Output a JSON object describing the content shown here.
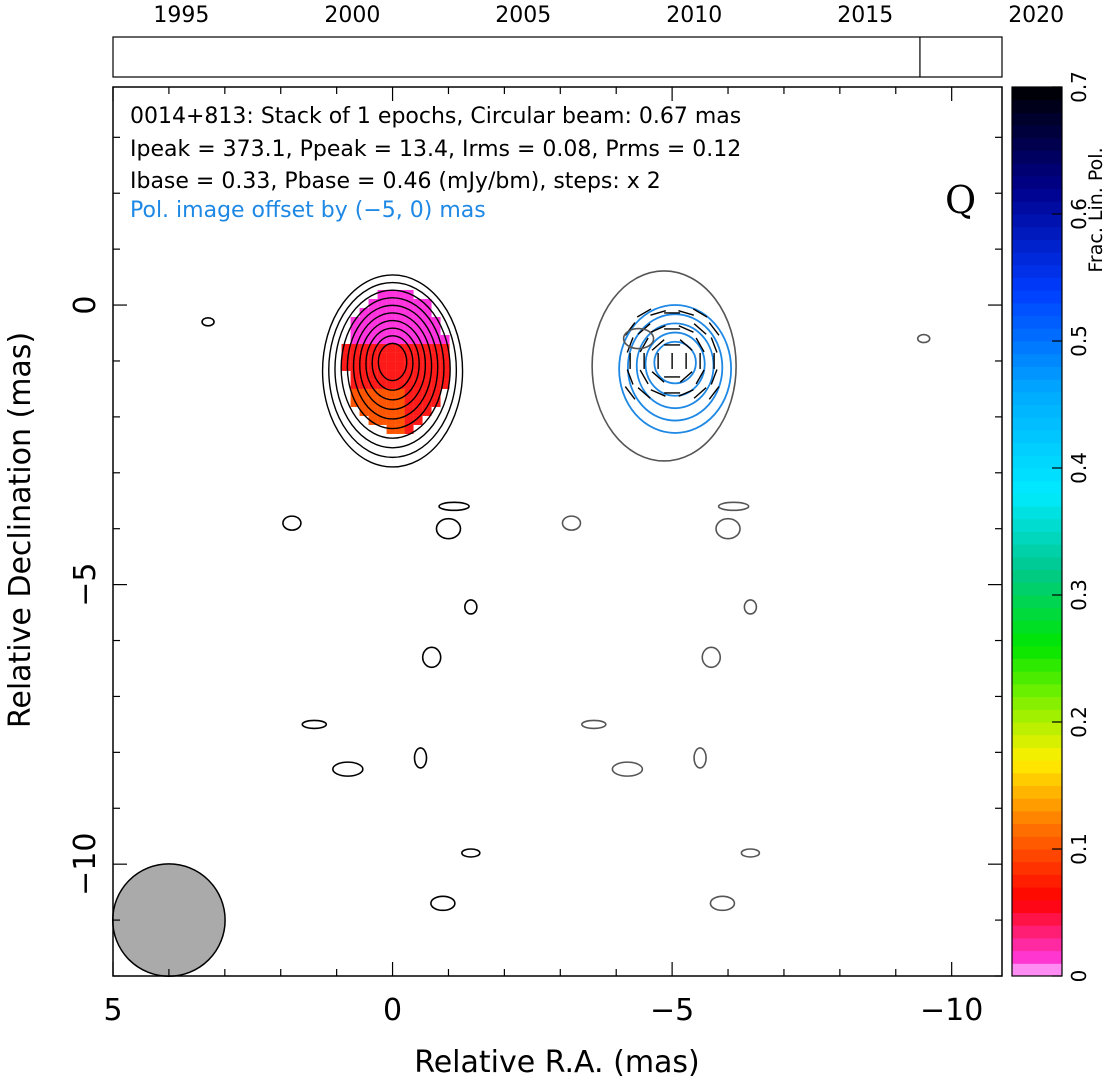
{
  "chart_data": {
    "type": "contour",
    "source": "0014+813",
    "info_lines": [
      "0014+813: Stack of 1 epochs, Circular beam: 0.67 mas",
      "Ipeak = 373.1, Ppeak = 13.4, Irms = 0.08, Prms = 0.12",
      "Ibase = 0.33, Pbase = 0.46 (mJy/bm), steps: x 2",
      "Pol. image offset by (−5, 0) mas"
    ],
    "info_colors": [
      "#000000",
      "#000000",
      "#000000",
      "#1e88e5"
    ],
    "quality_flag": "Q",
    "xlabel": "Relative R.A. (mas)",
    "ylabel": "Relative Declination (mas)",
    "xlim": [
      5,
      -10.9
    ],
    "ylim": [
      -12,
      3.9
    ],
    "xticks": [
      5,
      0,
      -5,
      -10
    ],
    "xtick_labels": [
      "5",
      "0",
      "−5",
      "−10"
    ],
    "yticks": [
      0,
      -5,
      -10
    ],
    "ytick_labels": [
      "0",
      "−5",
      "−10"
    ],
    "beam_diameter_mas": 0.67,
    "beam_center": [
      4,
      -11
    ],
    "timeline": {
      "years": [
        1995,
        2000,
        2005,
        2010,
        2015,
        2020
      ],
      "range": [
        1993,
        2019
      ],
      "epochs": [
        2016.6
      ]
    },
    "colorbar": {
      "label": "Frac. Lin. Pol.",
      "range": [
        0,
        0.7
      ],
      "ticks": [
        0,
        0.1,
        0.2,
        0.3,
        0.4,
        0.5,
        0.6,
        0.7
      ],
      "tick_labels": [
        "0",
        "0.1",
        "0.2",
        "0.3",
        "0.4",
        "0.5",
        "0.6",
        "0.7"
      ]
    },
    "stokes_i_core": {
      "center": [
        0,
        -1
      ],
      "levels": 10
    },
    "pol_core": {
      "center": [
        -5,
        -1
      ],
      "levels": 5,
      "offset_mas": [
        -5,
        0
      ]
    },
    "noise_contours": [
      [
        3.3,
        -0.3
      ],
      [
        1.8,
        -3.9
      ],
      [
        -1.0,
        -4.0
      ],
      [
        -1.1,
        -3.6
      ],
      [
        -1.4,
        -5.4
      ],
      [
        -0.7,
        -6.3
      ],
      [
        1.4,
        -7.5
      ],
      [
        0.8,
        -8.3
      ],
      [
        -0.5,
        -8.1
      ],
      [
        -1.4,
        -9.8
      ],
      [
        -0.9,
        -10.7
      ],
      [
        -4.4,
        -0.6
      ],
      [
        -9.5,
        -0.6
      ],
      [
        -3.2,
        -3.9
      ],
      [
        -6.0,
        -4.0
      ],
      [
        -6.1,
        -3.6
      ],
      [
        -6.4,
        -5.4
      ],
      [
        -5.7,
        -6.3
      ],
      [
        -3.6,
        -7.5
      ],
      [
        -4.2,
        -8.3
      ],
      [
        -5.5,
        -8.1
      ],
      [
        -6.4,
        -9.8
      ],
      [
        -5.9,
        -10.7
      ]
    ],
    "frac_pol_patch": {
      "center": [
        0,
        -1
      ],
      "inner": 0.02,
      "outer": 0.1
    }
  }
}
